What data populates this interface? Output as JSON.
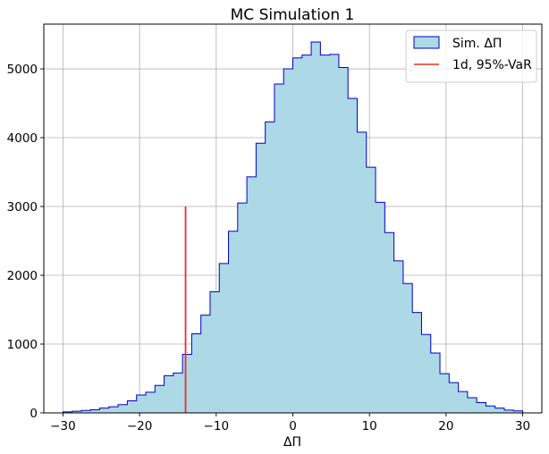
{
  "chart_data": {
    "type": "bar",
    "title": "MC Simulation 1",
    "xlabel": "ΔΠ",
    "ylabel": "",
    "xlim": [
      -32.5,
      32.5
    ],
    "ylim": [
      0,
      5650
    ],
    "grid": true,
    "legend_position": "top-right",
    "xticks": [
      -30,
      -20,
      -10,
      0,
      10,
      20,
      30
    ],
    "xtick_labels": [
      "−30",
      "−20",
      "−10",
      "0",
      "10",
      "20",
      "30"
    ],
    "yticks": [
      0,
      1000,
      2000,
      3000,
      4000,
      5000
    ],
    "ytick_labels": [
      "0",
      "1000",
      "2000",
      "3000",
      "4000",
      "5000"
    ],
    "series": [
      {
        "name": "Sim. ΔΠ",
        "kind": "histogram",
        "bin_start": -30,
        "bin_width": 1.2,
        "counts": [
          15,
          25,
          35,
          45,
          70,
          90,
          120,
          175,
          260,
          300,
          400,
          540,
          580,
          850,
          1150,
          1420,
          1760,
          2170,
          2640,
          3050,
          3430,
          3920,
          4230,
          4780,
          5000,
          5160,
          5200,
          5390,
          5200,
          5210,
          5020,
          4570,
          4080,
          3570,
          3060,
          2620,
          2210,
          1880,
          1460,
          1140,
          870,
          570,
          440,
          310,
          220,
          150,
          100,
          70,
          40,
          30
        ],
        "fill_color": "#add8e6",
        "edge_color": "#0000cd"
      },
      {
        "name": "1d, 95%-VaR",
        "kind": "vertical_line",
        "x": -14,
        "y_from": 0,
        "y_to": 3000,
        "color": "#e8302a"
      }
    ]
  }
}
